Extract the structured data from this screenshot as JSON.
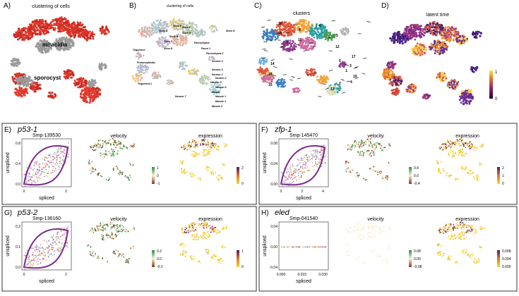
{
  "top": {
    "A": {
      "letter": "A)",
      "title": "clustering of cells",
      "labels": [
        "miracidia",
        "sporocyst"
      ]
    },
    "B": {
      "letter": "B)",
      "title": "clustering of cells",
      "labels": [
        "Stem G",
        "Stem A",
        "Stem B",
        "Stem C",
        "Stem D",
        "Stem E",
        "Stem F",
        "Tegument",
        "Protonephridia",
        "Tegument 2",
        "Parenchyma",
        "Paren 1",
        "Parenchyma 2",
        "Neuron 4",
        "Neuron 3",
        "Neuron 1",
        "Neuron 2",
        "Neuron 5",
        "Neuron 6",
        "Muscle",
        "Muscle 1",
        "Muscle 2",
        "Muscle 3",
        "Neuron 7",
        "Stem G"
      ]
    },
    "C": {
      "letter": "C)",
      "title": "clusters",
      "labels": [
        "16",
        "6",
        "8",
        "9",
        "5",
        "7",
        "11",
        "12",
        "17",
        "0",
        "14",
        "13",
        "2",
        "4",
        "10",
        "1",
        "3",
        "18",
        "15"
      ]
    },
    "D": {
      "letter": "D)",
      "title": "latent time",
      "colorbar_ticks": [
        "1",
        "0"
      ]
    }
  },
  "panels": [
    {
      "letter": "E)",
      "gene": "p53-1",
      "smp": "Smp-139530",
      "velocity": "velocity",
      "expression": "expression",
      "xlabel": "spliced",
      "ylabel": "unspliced",
      "xticks": [
        "0",
        "2"
      ],
      "yticks": [
        "0.8",
        "0.4",
        "0.0"
      ],
      "vel_ticks": [
        "1",
        "0",
        "-1"
      ],
      "expr_ticks": [
        "2",
        "0"
      ]
    },
    {
      "letter": "F)",
      "gene": "zfp-1",
      "smp": "Smp-145470",
      "velocity": "velocity",
      "expression": "expression",
      "xlabel": "spliced",
      "ylabel": "unspliced",
      "xticks": [
        "0",
        "2",
        "4"
      ],
      "yticks": [
        "0.08",
        "0.04",
        "0.00"
      ],
      "vel_ticks": [
        "0.4",
        "0.0",
        "-0.4"
      ],
      "expr_ticks": [
        "2",
        "1",
        "0"
      ]
    },
    {
      "letter": "G)",
      "gene": "p53-2",
      "smp": "Smp-136160",
      "velocity": "velocity",
      "expression": "expression",
      "xlabel": "spliced",
      "ylabel": "unspliced",
      "xticks": [
        "0",
        "2"
      ],
      "yticks": [
        "0.2",
        "0.1",
        "0.0"
      ],
      "vel_ticks": [
        "0.2",
        "0.0",
        "-0.2"
      ],
      "expr_ticks": [
        "1",
        "0"
      ]
    },
    {
      "letter": "H)",
      "gene": "eled",
      "smp": "Smp-041540",
      "velocity": "velocity",
      "expression": "expression",
      "xlabel": "spliced",
      "ylabel": "unspliced",
      "xticks": [
        "0.000",
        "0.015",
        "0.030"
      ],
      "yticks": [
        "0.04",
        "0.00",
        "-0.04"
      ],
      "vel_ticks": [
        "0.08",
        "0.00",
        "-0.08"
      ],
      "expr_ticks": [
        "0.008",
        "0.004",
        "0.000"
      ]
    }
  ],
  "colors": {
    "cluster_red": "#e23b2e",
    "cluster_gray": "#9a9a9a",
    "curve": "#7b2a8a",
    "frame": "#333333"
  }
}
